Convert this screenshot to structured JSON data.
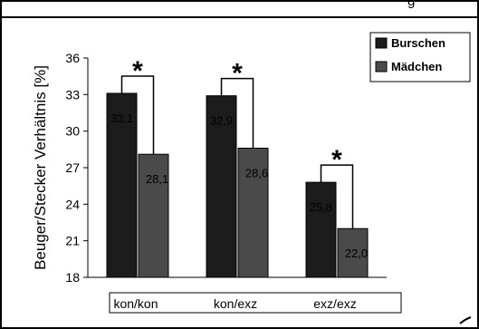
{
  "top_strip_text": "g",
  "chart_data": {
    "type": "bar",
    "title": "",
    "xlabel": "",
    "ylabel": "Beuger/Stecker Verhältnis [%]",
    "ylim": [
      18,
      36
    ],
    "yticks": [
      18,
      21,
      24,
      27,
      30,
      33,
      36
    ],
    "categories": [
      "kon/kon",
      "kon/exz",
      "exz/exz"
    ],
    "series": [
      {
        "name": "Burschen",
        "values": [
          33.1,
          32.9,
          25.8
        ],
        "labels": [
          "33,1",
          "32,9",
          "25,8"
        ],
        "color": "#1c1c1c"
      },
      {
        "name": "Mädchen",
        "values": [
          28.1,
          28.6,
          22.0
        ],
        "labels": [
          "28,1",
          "28,6",
          "22,0"
        ],
        "color": "#4a4a4a"
      }
    ],
    "annotations": [
      "*",
      "*",
      "*"
    ],
    "legend": "top-right",
    "grid": false
  }
}
